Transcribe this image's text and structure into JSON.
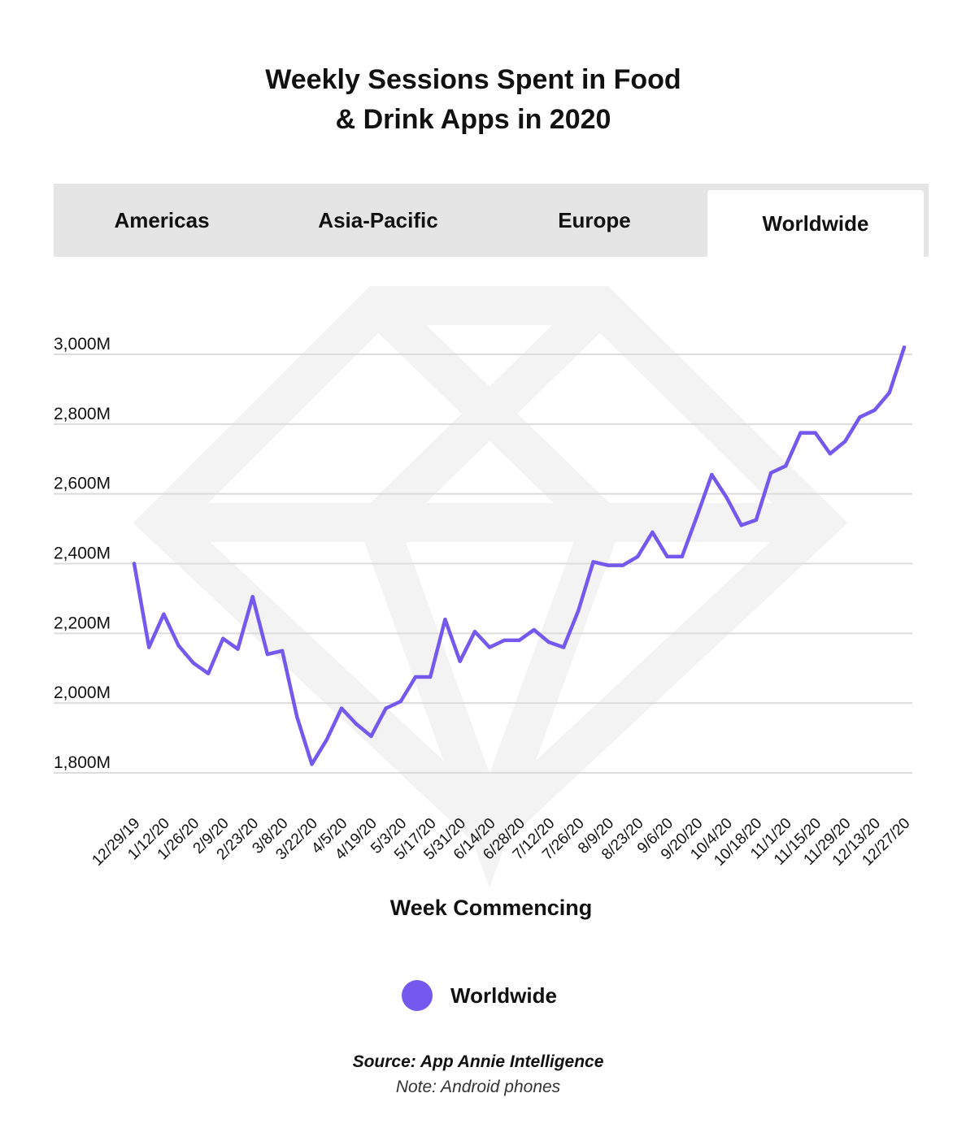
{
  "title_line1": "Weekly Sessions Spent in Food",
  "title_line2": "& Drink Apps in 2020",
  "tabs": [
    {
      "label": "Americas",
      "active": false
    },
    {
      "label": "Asia-Pacific",
      "active": false
    },
    {
      "label": "Europe",
      "active": false
    },
    {
      "label": "Worldwide",
      "active": true
    }
  ],
  "colors": {
    "line": "#7559ef",
    "grid": "#dcdcdc",
    "tab_bg": "#e5e5e5",
    "watermark": "#f3f3f3"
  },
  "watermark_icon": "gem-icon",
  "legend": {
    "label": "Worldwide"
  },
  "source": "Source: App Annie Intelligence",
  "note": "Note: Android phones",
  "chart_data": {
    "type": "line",
    "title": "Weekly Sessions Spent in Food & Drink Apps in 2020",
    "xlabel": "Week Commencing",
    "ylabel": "",
    "ylim": [
      1800,
      3000
    ],
    "yticks": [
      1800,
      2000,
      2200,
      2400,
      2600,
      2800,
      3000
    ],
    "ytick_labels": [
      "1,800M",
      "2,000M",
      "2,200M",
      "2,400M",
      "2,600M",
      "2,800M",
      "3,000M"
    ],
    "grid": true,
    "legend_position": "bottom",
    "x": [
      "12/29/19",
      "1/5/20",
      "1/12/20",
      "1/19/20",
      "1/26/20",
      "2/2/20",
      "2/9/20",
      "2/16/20",
      "2/23/20",
      "3/1/20",
      "3/8/20",
      "3/15/20",
      "3/22/20",
      "3/29/20",
      "4/5/20",
      "4/12/20",
      "4/19/20",
      "4/26/20",
      "5/3/20",
      "5/10/20",
      "5/17/20",
      "5/24/20",
      "5/31/20",
      "6/7/20",
      "6/14/20",
      "6/21/20",
      "6/28/20",
      "7/5/20",
      "7/12/20",
      "7/19/20",
      "7/26/20",
      "8/2/20",
      "8/9/20",
      "8/16/20",
      "8/23/20",
      "8/30/20",
      "9/6/20",
      "9/13/20",
      "9/20/20",
      "9/27/20",
      "10/4/20",
      "10/11/20",
      "10/18/20",
      "10/25/20",
      "11/1/20",
      "11/8/20",
      "11/15/20",
      "11/22/20",
      "11/29/20",
      "12/6/20",
      "12/13/20",
      "12/20/20",
      "12/27/20"
    ],
    "tick_labels": [
      "12/29/19",
      "1/12/20",
      "1/26/20",
      "2/9/20",
      "2/23/20",
      "3/8/20",
      "3/22/20",
      "4/5/20",
      "4/19/20",
      "5/3/20",
      "5/17/20",
      "5/31/20",
      "6/14/20",
      "6/28/20",
      "7/12/20",
      "7/26/20",
      "8/9/20",
      "8/23/20",
      "9/6/20",
      "9/20/20",
      "10/4/20",
      "10/18/20",
      "11/1/20",
      "11/15/20",
      "11/29/20",
      "12/13/20",
      "12/27/20"
    ],
    "series": [
      {
        "name": "Worldwide",
        "values": [
          2400,
          2160,
          2255,
          2165,
          2115,
          2085,
          2185,
          2155,
          2305,
          2140,
          2150,
          1960,
          1825,
          1895,
          1985,
          1940,
          1905,
          1985,
          2005,
          2075,
          2075,
          2240,
          2120,
          2205,
          2160,
          2180,
          2180,
          2210,
          2175,
          2160,
          2265,
          2405,
          2395,
          2395,
          2420,
          2490,
          2420,
          2420,
          2535,
          2655,
          2590,
          2510,
          2525,
          2660,
          2680,
          2775,
          2775,
          2715,
          2750,
          2820,
          2840,
          2890,
          3020
        ]
      }
    ]
  }
}
